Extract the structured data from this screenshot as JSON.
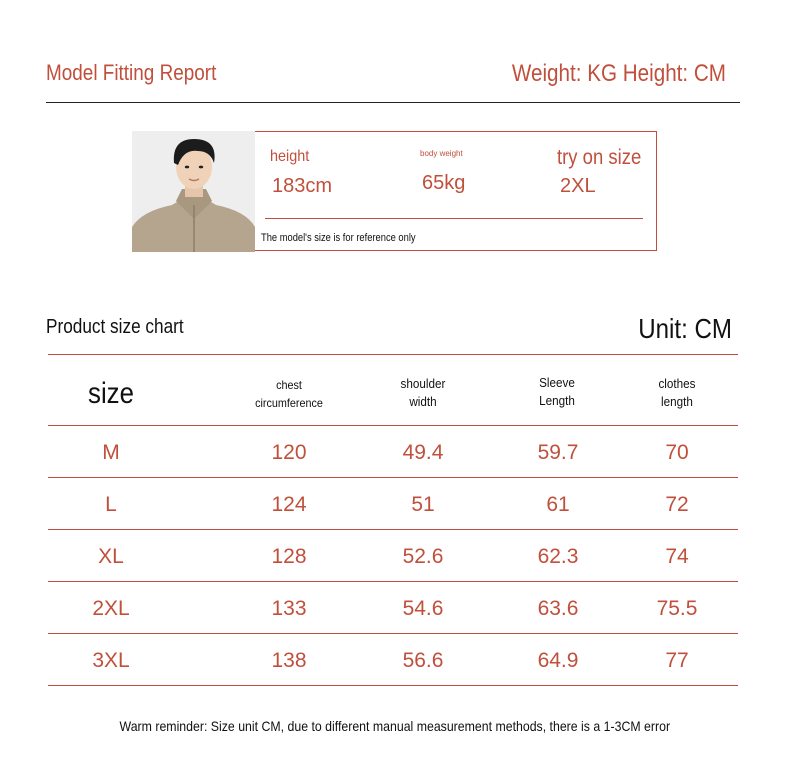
{
  "header": {
    "title": "Model Fitting Report",
    "units": "Weight: KG Height: CM"
  },
  "model": {
    "height_label": "height",
    "height_value": "183cm",
    "weight_label": "body weight",
    "weight_value": "65kg",
    "size_label": "try on size",
    "size_value": "2XL",
    "note": "The model's size is for reference only"
  },
  "chart": {
    "title": "Product size chart",
    "unit": "Unit: CM",
    "headers": {
      "size": "size",
      "chest_1": "chest",
      "chest_2": "circumference",
      "shoulder_1": "shoulder",
      "shoulder_2": "width",
      "sleeve_1": "Sleeve",
      "sleeve_2": "Length",
      "length_1": "clothes",
      "length_2": "length"
    },
    "rows": [
      [
        "M",
        "120",
        "49.4",
        "59.7",
        "70"
      ],
      [
        "L",
        "124",
        "51",
        "61",
        "72"
      ],
      [
        "XL",
        "128",
        "52.6",
        "62.3",
        "74"
      ],
      [
        "2XL",
        "133",
        "54.6",
        "63.6",
        "75.5"
      ],
      [
        "3XL",
        "138",
        "56.6",
        "64.9",
        "77"
      ]
    ]
  },
  "footer": {
    "note": "Warm reminder: Size unit CM, due to different manual measurement methods, there is a 1-3CM error"
  },
  "colors": {
    "accent": "#c0503c",
    "text": "#111111"
  }
}
